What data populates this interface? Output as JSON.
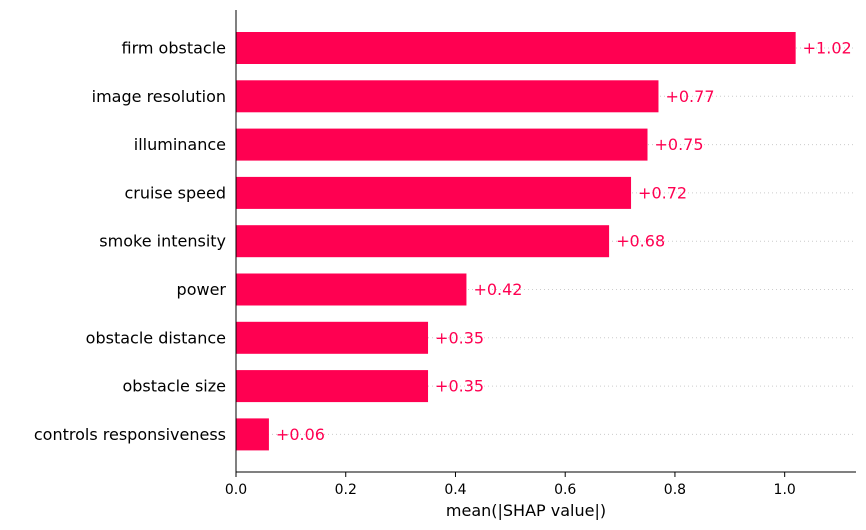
{
  "chart_data": {
    "type": "bar",
    "orientation": "horizontal",
    "categories": [
      "firm obstacle",
      "image resolution",
      "illuminance",
      "cruise speed",
      "smoke intensity",
      "power",
      "obstacle distance",
      "obstacle size",
      "controls responsiveness"
    ],
    "values": [
      1.02,
      0.77,
      0.75,
      0.72,
      0.68,
      0.42,
      0.35,
      0.35,
      0.06
    ],
    "value_labels": [
      "+1.02",
      "+0.77",
      "+0.75",
      "+0.72",
      "+0.68",
      "+0.42",
      "+0.35",
      "+0.35",
      "+0.06"
    ],
    "xlabel": "mean(|SHAP value|)",
    "ylabel": "",
    "xlim": [
      0,
      1.13
    ],
    "xticks": [
      0.0,
      0.2,
      0.4,
      0.6,
      0.8,
      1.0
    ],
    "xtick_labels": [
      "0.0",
      "0.2",
      "0.4",
      "0.6",
      "0.8",
      "1.0"
    ],
    "bar_color": "#ff0051",
    "grid": "horizontal dotted"
  }
}
